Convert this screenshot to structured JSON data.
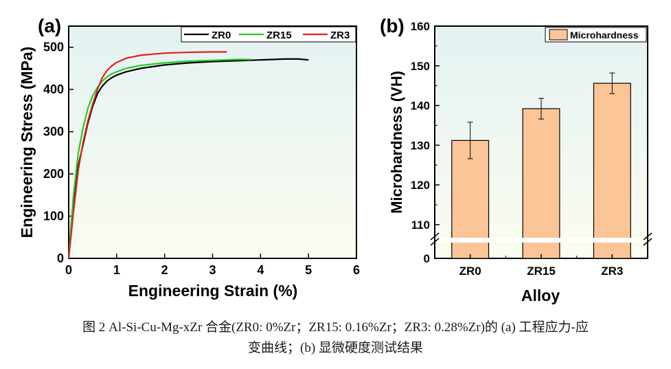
{
  "chart_data": [
    {
      "type": "line",
      "panel_label": "(a)",
      "xlabel": "Engineering Strain (%)",
      "ylabel": "Engineering Stress (MPa)",
      "xlim": [
        0,
        6
      ],
      "ylim": [
        0,
        550
      ],
      "xticks": [
        "0",
        "1",
        "2",
        "3",
        "4",
        "5",
        "6"
      ],
      "yticks": [
        "0",
        "100",
        "200",
        "300",
        "400",
        "500"
      ],
      "legend_position": "top-right",
      "series": [
        {
          "name": "ZR0",
          "color": "#000000",
          "x": [
            0,
            0.05,
            0.1,
            0.2,
            0.3,
            0.4,
            0.5,
            0.6,
            0.7,
            0.8,
            0.9,
            1.0,
            1.2,
            1.5,
            2.0,
            2.5,
            3.0,
            3.5,
            4.0,
            4.5,
            4.8,
            5.0
          ],
          "y": [
            0,
            60,
            120,
            220,
            270,
            320,
            360,
            390,
            408,
            420,
            428,
            434,
            442,
            450,
            458,
            463,
            466,
            468,
            470,
            472,
            472,
            470
          ]
        },
        {
          "name": "ZR15",
          "color": "#22cc22",
          "x": [
            0,
            0.05,
            0.1,
            0.2,
            0.3,
            0.4,
            0.5,
            0.6,
            0.7,
            0.8,
            0.9,
            1.0,
            1.2,
            1.5,
            2.0,
            2.5,
            3.0,
            3.5,
            3.8
          ],
          "y": [
            0,
            80,
            150,
            250,
            310,
            355,
            385,
            405,
            420,
            430,
            437,
            442,
            450,
            457,
            463,
            467,
            469,
            471,
            471
          ]
        },
        {
          "name": "ZR3",
          "color": "#e02020",
          "x": [
            0,
            0.05,
            0.1,
            0.2,
            0.3,
            0.4,
            0.5,
            0.6,
            0.7,
            0.8,
            0.9,
            1.0,
            1.2,
            1.5,
            2.0,
            2.5,
            3.0,
            3.3
          ],
          "y": [
            0,
            55,
            110,
            210,
            275,
            325,
            365,
            400,
            428,
            445,
            456,
            464,
            474,
            481,
            486,
            488,
            489,
            489
          ]
        }
      ]
    },
    {
      "type": "bar",
      "panel_label": "(b)",
      "xlabel": "Alloy",
      "ylabel": "Microhardness (VH)",
      "categories": [
        "ZR0",
        "ZR15",
        "ZR3"
      ],
      "values": [
        131.2,
        139.2,
        145.6
      ],
      "errors": [
        4.6,
        2.6,
        2.6
      ],
      "ylim": [
        0,
        160
      ],
      "axis_break": [
        0,
        106
      ],
      "yticks": [
        "0",
        "110",
        "120",
        "130",
        "140",
        "150",
        "160"
      ],
      "legend": [
        "Microhardness"
      ],
      "legend_position": "top-right",
      "bar_color": "#fbc598"
    }
  ],
  "caption": {
    "line1": "图 2 Al-Si-Cu-Mg-xZr 合金(ZR0: 0%Zr；ZR15: 0.16%Zr；ZR3: 0.28%Zr)的 (a) 工程应力-应",
    "line2": "变曲线；(b) 显微硬度测试结果"
  }
}
